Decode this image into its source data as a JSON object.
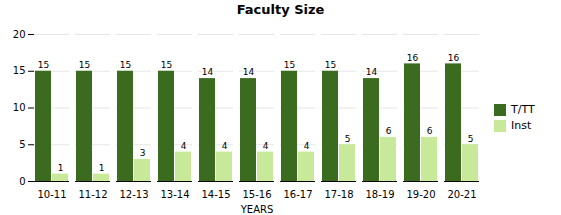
{
  "chart_data": {
    "type": "bar",
    "title": "Faculty Size",
    "xlabel": "YEARS",
    "categories": [
      "10-11",
      "11-12",
      "12-13",
      "13-14",
      "14-15",
      "15-16",
      "16-17",
      "17-18",
      "18-19",
      "19-20",
      "20-21"
    ],
    "series": [
      {
        "name": "T/TT",
        "color": "#3a6b1e",
        "values": [
          15,
          15,
          15,
          15,
          14,
          14,
          15,
          15,
          14,
          16,
          16
        ]
      },
      {
        "name": "Inst",
        "color": "#c8e89a",
        "values": [
          1,
          1,
          3,
          4,
          4,
          4,
          4,
          5,
          6,
          6,
          5
        ]
      }
    ],
    "ylim": [
      0,
      20
    ],
    "yticks": [
      0,
      5,
      10,
      15,
      20
    ],
    "grid": true,
    "legend": "right",
    "data_labels": true
  }
}
